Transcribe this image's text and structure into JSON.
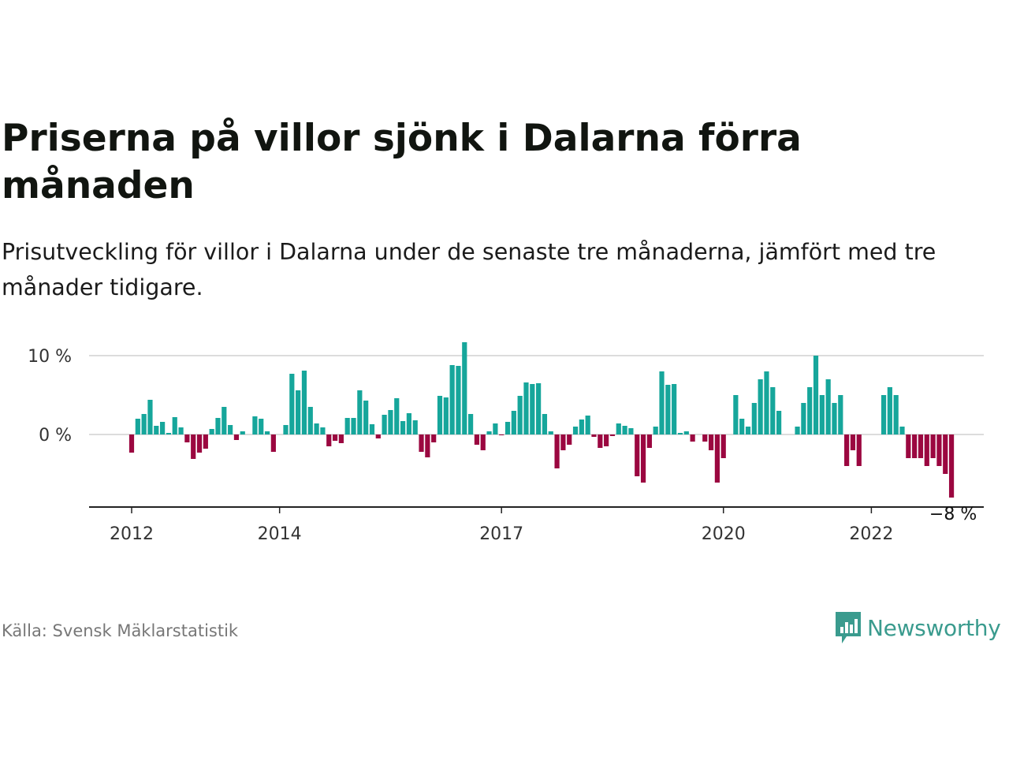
{
  "title": "Priserna på villor sjönk i Dalarna förra månaden",
  "subtitle": "Prisutveckling för villor i Dalarna under de senaste tre månaderna, jämfört med tre månader tidigare.",
  "source": "Källa: Svensk Mäklarstatistik",
  "brand": {
    "name": "Newsworthy",
    "color": "#3a9b8e",
    "icon": "newsworthy-chart-bubble-icon"
  },
  "colors": {
    "positive": "#16a69b",
    "negative": "#9b0740"
  },
  "chart_data": {
    "type": "bar",
    "ylim": [
      -9,
      12
    ],
    "grid": true,
    "y_ticks": [
      {
        "value": 0,
        "label": "0 %"
      },
      {
        "value": 10,
        "label": "10 %"
      }
    ],
    "x_ticks": [
      {
        "index": 0,
        "label": "2012"
      },
      {
        "index": 24,
        "label": "2014"
      },
      {
        "index": 60,
        "label": "2017"
      },
      {
        "index": 96,
        "label": "2020"
      },
      {
        "index": 120,
        "label": "2022"
      }
    ],
    "end_label": "−8 %",
    "series": [
      {
        "values": [
          -2.3,
          2.0,
          2.6,
          4.4,
          1.1,
          1.6,
          0.2,
          2.2,
          0.9,
          -1.0,
          -3.1,
          -2.3,
          -1.8,
          0.7,
          2.1,
          3.5,
          1.2,
          -0.7,
          0.4,
          0.0,
          2.3,
          2.0,
          0.4,
          -2.2,
          0.0,
          1.2,
          7.7,
          5.6,
          8.1,
          3.5,
          1.4,
          0.9,
          -1.5,
          -0.8,
          -1.1,
          2.1,
          2.1,
          5.6,
          4.3,
          1.3,
          -0.5,
          2.5,
          3.1,
          4.6,
          1.7,
          2.7,
          1.8,
          -2.2,
          -2.9,
          -1.0,
          4.9,
          4.7,
          8.8,
          8.7,
          11.7,
          2.6,
          -1.3,
          -2.0,
          0.4,
          1.4,
          -0.1,
          1.6,
          3.0,
          4.9,
          6.6,
          6.4,
          6.5,
          2.6,
          0.4,
          -4.3,
          -2.0,
          -1.3,
          1.0,
          1.9,
          2.4,
          -0.3,
          -1.7,
          -1.5,
          -0.2,
          1.4,
          1.1,
          0.8,
          -5.3,
          -6.1,
          -1.7,
          1.0,
          8.0,
          6.3,
          6.4,
          0.2,
          0.4,
          -0.9,
          0.0,
          -0.9,
          -2.0,
          -6.1,
          -3.0,
          0.0,
          5.0,
          2.0,
          1.0,
          4.0,
          7.0,
          8.0,
          6.0,
          3.0,
          0.0,
          0.0,
          1.0,
          4.0,
          6.0,
          10.0,
          5.0,
          7.0,
          4.0,
          5.0,
          -4.0,
          -2.0,
          -4.0,
          0.0,
          0.0,
          0.0,
          5.0,
          6.0,
          5.0,
          1.0,
          -3.0,
          -3.0,
          -3.0,
          -4.0,
          -3.0,
          -4.0,
          -5.0,
          -8.0
        ]
      }
    ]
  }
}
